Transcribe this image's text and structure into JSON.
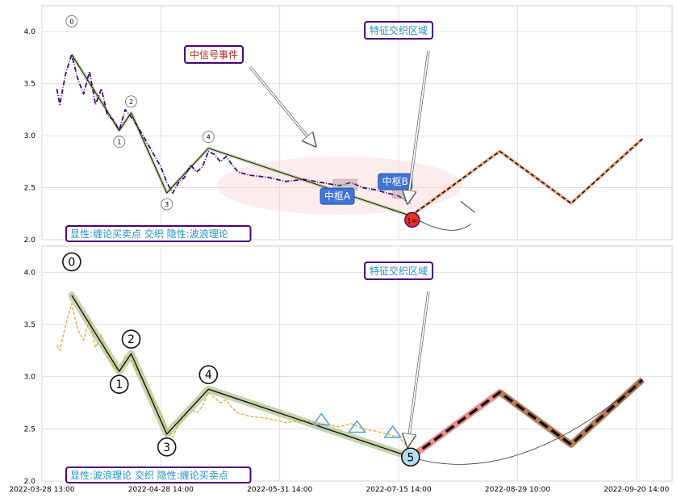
{
  "chart_data": [
    {
      "type": "line",
      "panel": "top",
      "x_tick_labels": [],
      "ylim": [
        2.0,
        4.25
      ],
      "y_ticks": [
        2.0,
        2.5,
        3.0,
        3.5,
        4.0
      ],
      "y_tick_labels": [
        "2.0",
        "2.5",
        "3.0",
        "3.5",
        "4.0"
      ],
      "grid": true,
      "price_color": "#4b0082",
      "price_series": [
        [
          2.5,
          3.45
        ],
        [
          3,
          3.3
        ],
        [
          4,
          3.6
        ],
        [
          5,
          3.78
        ],
        [
          6,
          3.55
        ],
        [
          7,
          3.4
        ],
        [
          8,
          3.62
        ],
        [
          9,
          3.3
        ],
        [
          10,
          3.45
        ],
        [
          11,
          3.2
        ],
        [
          12,
          3.15
        ],
        [
          13,
          3.05
        ],
        [
          14,
          3.25
        ],
        [
          15,
          3.18
        ],
        [
          16,
          3.1
        ],
        [
          17,
          3.0
        ],
        [
          18,
          2.9
        ],
        [
          19,
          2.8
        ],
        [
          20,
          2.7
        ],
        [
          21,
          2.55
        ],
        [
          22,
          2.45
        ],
        [
          23,
          2.55
        ],
        [
          24,
          2.6
        ],
        [
          25,
          2.72
        ],
        [
          26,
          2.65
        ],
        [
          27,
          2.7
        ],
        [
          28,
          2.85
        ],
        [
          29,
          2.82
        ],
        [
          30,
          2.75
        ],
        [
          31,
          2.8
        ],
        [
          32,
          2.72
        ],
        [
          33,
          2.65
        ],
        [
          35,
          2.62
        ],
        [
          38,
          2.6
        ],
        [
          41,
          2.56
        ],
        [
          44,
          2.58
        ],
        [
          47,
          2.55
        ],
        [
          50,
          2.52
        ],
        [
          52,
          2.55
        ],
        [
          54,
          2.5
        ],
        [
          56,
          2.48
        ],
        [
          58,
          2.45
        ],
        [
          60,
          2.42
        ],
        [
          62,
          2.35
        ]
      ],
      "zigzag": {
        "labels": [
          "0",
          "1",
          "2",
          "3",
          "4"
        ],
        "points": [
          [
            5,
            3.78
          ],
          [
            13,
            3.05
          ],
          [
            15,
            3.22
          ],
          [
            21,
            2.45
          ],
          [
            28,
            2.88
          ],
          [
            62,
            2.23
          ]
        ]
      },
      "forecast": [
        [
          62,
          2.23
        ],
        [
          65,
          2.35
        ],
        [
          77,
          2.85
        ],
        [
          89,
          2.35
        ],
        [
          101,
          2.97
        ]
      ],
      "forecast_color": "#f4a582",
      "zones": [
        {
          "label": "中枢A",
          "x": [
            49,
            53
          ],
          "y": [
            2.48,
            2.58
          ]
        },
        {
          "label": "中枢B",
          "x": [
            59,
            61
          ],
          "y": [
            2.4,
            2.48
          ]
        }
      ],
      "events": [
        {
          "label": "中信号事件",
          "color": "#b22222"
        },
        {
          "label": "特征交织区域",
          "color": "#1e90c8"
        }
      ],
      "signal_marker": "1=",
      "legend_text": "显性:缠论买卖点 交织 隐性:波浪理论"
    },
    {
      "type": "line",
      "panel": "bottom",
      "x_tick_labels": [
        "2022-03-28 13:00",
        "2022-04-28 14:00",
        "2022-05-31 14:00",
        "2022-07-15 14:00",
        "2022-08-29 10:00",
        "2022-09-20 14:00"
      ],
      "ylim": [
        2.0,
        4.25
      ],
      "y_ticks": [
        2.0,
        2.5,
        3.0,
        3.5,
        4.0
      ],
      "y_tick_labels": [
        "2.0",
        "2.5",
        "3.0",
        "3.5",
        "4.0"
      ],
      "grid": true,
      "price_color": "#e8a93a",
      "price_series": [
        [
          2.5,
          3.3
        ],
        [
          3,
          3.25
        ],
        [
          4,
          3.5
        ],
        [
          5,
          3.7
        ],
        [
          6,
          3.45
        ],
        [
          7,
          3.35
        ],
        [
          8,
          3.55
        ],
        [
          9,
          3.28
        ],
        [
          10,
          3.4
        ],
        [
          11,
          3.2
        ],
        [
          12,
          3.1
        ],
        [
          13,
          3.05
        ],
        [
          14,
          3.2
        ],
        [
          15,
          3.15
        ],
        [
          16,
          3.05
        ],
        [
          17,
          2.95
        ],
        [
          18,
          2.85
        ],
        [
          19,
          2.75
        ],
        [
          20,
          2.65
        ],
        [
          21,
          2.5
        ],
        [
          22,
          2.42
        ],
        [
          23,
          2.55
        ],
        [
          24,
          2.62
        ],
        [
          25,
          2.7
        ],
        [
          26,
          2.65
        ],
        [
          27,
          2.72
        ],
        [
          28,
          2.85
        ],
        [
          29,
          2.8
        ],
        [
          30,
          2.75
        ],
        [
          31,
          2.78
        ],
        [
          32,
          2.7
        ],
        [
          33,
          2.65
        ],
        [
          35,
          2.62
        ],
        [
          38,
          2.6
        ],
        [
          41,
          2.56
        ],
        [
          44,
          2.58
        ],
        [
          47,
          2.55
        ],
        [
          50,
          2.52
        ],
        [
          52,
          2.55
        ],
        [
          54,
          2.5
        ],
        [
          56,
          2.48
        ],
        [
          58,
          2.45
        ],
        [
          60,
          2.42
        ],
        [
          62,
          2.3
        ]
      ],
      "zigzag": {
        "labels": [
          "0",
          "1",
          "2",
          "3",
          "4",
          "5"
        ],
        "points": [
          [
            5,
            3.78
          ],
          [
            13,
            3.05
          ],
          [
            15,
            3.22
          ],
          [
            21,
            2.45
          ],
          [
            28,
            2.88
          ],
          [
            62,
            2.23
          ]
        ]
      },
      "forecast": [
        [
          62,
          2.23
        ],
        [
          65,
          2.35
        ],
        [
          77,
          2.85
        ],
        [
          89,
          2.35
        ],
        [
          101,
          2.97
        ]
      ],
      "forecast_color": "#f08080",
      "events": [
        {
          "label": "特征交织区域",
          "color": "#1e90c8"
        }
      ],
      "legend_text": "显性:波浪理论 交织 隐性:缠论买卖点"
    }
  ]
}
